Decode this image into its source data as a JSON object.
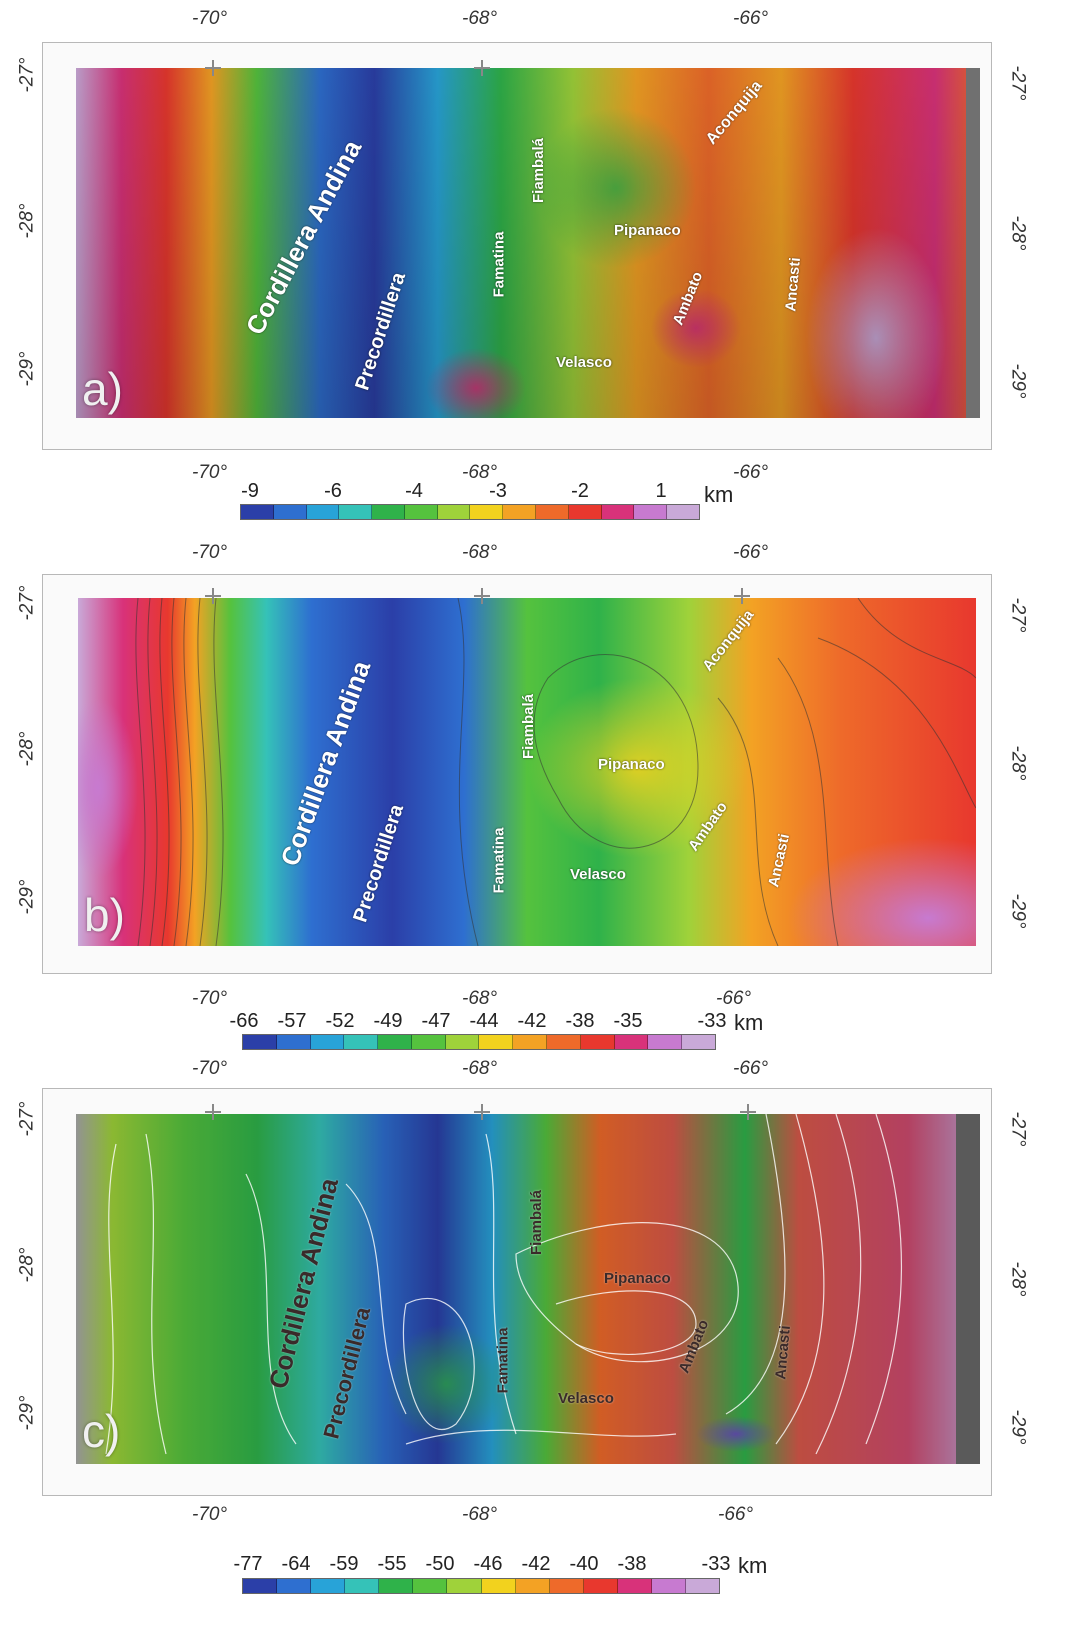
{
  "panels": {
    "a": {
      "letter": "a)",
      "top_lon": [
        "-70°",
        "-68°",
        "-66°"
      ],
      "bottom_lon": [
        "-70°",
        "-68°",
        "-66°"
      ],
      "left_lat": [
        "-27°",
        "-28°",
        "-29°"
      ],
      "right_lat": [
        "-27°",
        "-28°",
        "-29°"
      ],
      "labels": {
        "cordillera": "Cordillera Andina",
        "precordillera": "Precordillera",
        "famatina": "Famatina",
        "fiambala": "Fiambalá",
        "velasco": "Velasco",
        "pipanaco": "Pipanaco",
        "ambato": "Ambato",
        "ancasti": "Ancasti",
        "aconquija": "Aconquija"
      },
      "colorbar": {
        "ticks": [
          "-9",
          "-6",
          "-4",
          "-3",
          "-2",
          "1"
        ],
        "unit": "km"
      }
    },
    "b": {
      "letter": "b)",
      "top_lon": [
        "-70°",
        "-68°",
        "-66°"
      ],
      "bottom_lon": [
        "-70°",
        "-68°",
        "-66°"
      ],
      "left_lat": [
        "-27°",
        "-28°",
        "-29°"
      ],
      "right_lat": [
        "-27°",
        "-28°",
        "-29°"
      ],
      "labels": {
        "cordillera": "Cordillera Andina",
        "precordillera": "Precordillera",
        "famatina": "Famatina",
        "fiambala": "Fiambalá",
        "velasco": "Velasco",
        "pipanaco": "Pipanaco",
        "ambato": "Ambato",
        "ancasti": "Ancasti",
        "aconquija": "Aconquija"
      },
      "colorbar": {
        "ticks": [
          "-66",
          "-57",
          "-52",
          "-49",
          "-47",
          "-44",
          "-42",
          "-38",
          "-35",
          "-33"
        ],
        "unit": "km"
      }
    },
    "c": {
      "letter": "c)",
      "top_lon": [
        "-70°",
        "-68°",
        "-66°"
      ],
      "bottom_lon": [
        "-70°",
        "-68°",
        "-66°"
      ],
      "left_lat": [
        "-27°",
        "-28°",
        "-29°"
      ],
      "right_lat": [
        "-27°",
        "-28°",
        "-29°"
      ],
      "labels": {
        "cordillera": "Cordillera Andina",
        "precordillera": "Precordillera",
        "famatina": "Famatina",
        "fiambala": "Fiambalá",
        "velasco": "Velasco",
        "pipanaco": "Pipanaco",
        "ambato": "Ambato",
        "ancasti": "Ancasti"
      },
      "colorbar": {
        "ticks": [
          "-77",
          "-64",
          "-59",
          "-55",
          "-50",
          "-46",
          "-42",
          "-40",
          "-38",
          "-33"
        ],
        "unit": "km"
      }
    }
  },
  "colors": {
    "palette": [
      "#2b3fa8",
      "#2e6fd0",
      "#28a3d8",
      "#35c2b8",
      "#2fb24a",
      "#55c23e",
      "#9fd23a",
      "#f2d21e",
      "#f3a224",
      "#ee6a2a",
      "#e8382e",
      "#d8327a",
      "#c77ad0",
      "#c9a9d8"
    ]
  }
}
